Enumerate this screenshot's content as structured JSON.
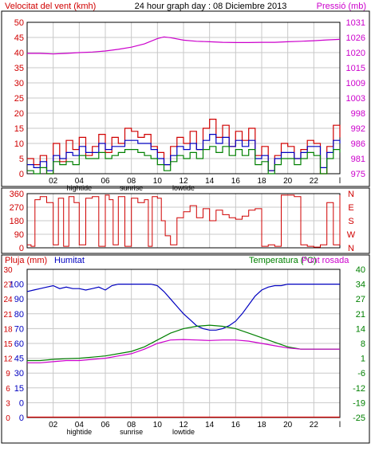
{
  "header": {
    "title": "24 hour graph day : 08 Diciembre 2013",
    "left_label": "Velocitat del vent (kmh)",
    "right_label": "Pressió (mb)"
  },
  "colors": {
    "wind": "#d00000",
    "pressure": "#cc00cc",
    "blue": "#0000c0",
    "green": "#008000",
    "grid": "#c8c8c8",
    "frame": "#000000"
  },
  "x_axis": {
    "labels": [
      "02",
      "04",
      "06",
      "08",
      "10",
      "12",
      "14",
      "16",
      "18",
      "20",
      "22",
      "l"
    ],
    "events": [
      "hightide",
      "sunrise",
      "lowtide"
    ]
  },
  "chart_data": [
    {
      "type": "line",
      "title": "24 hour graph day : 08 Diciembre 2013",
      "left_axis": {
        "label": "Velocitat del vent (kmh)",
        "ticks": [
          "0",
          "5",
          "10",
          "15",
          "20",
          "25",
          "30",
          "35",
          "40",
          "45",
          "50"
        ]
      },
      "right_axis": {
        "label": "Pressió (mb)",
        "ticks": [
          "975",
          "981",
          "986",
          "992",
          "998",
          "1003",
          "1009",
          "1015",
          "1020",
          "1026",
          "1031"
        ]
      },
      "x_ticks": [
        "02",
        "04",
        "06",
        "08",
        "10",
        "12",
        "14",
        "16",
        "18",
        "20",
        "22",
        "l"
      ],
      "series": [
        {
          "axis": "left",
          "x": [
            0,
            0.5,
            1,
            1.5,
            2,
            2.5,
            3,
            3.5,
            4,
            4.5,
            5,
            5.5,
            6,
            6.5,
            7,
            7.5,
            8,
            8.5,
            9,
            9.5,
            10,
            10.5,
            11,
            11.5,
            12,
            12.5,
            13,
            13.5,
            14,
            14.5,
            15,
            15.5,
            16,
            16.5,
            17,
            17.5,
            18,
            18.5,
            19,
            19.5,
            20,
            20.5,
            21,
            21.5,
            22,
            22.5,
            23,
            23.5,
            24
          ],
          "y": [
            5,
            3,
            6,
            0,
            10,
            4,
            11,
            8,
            12,
            6,
            9,
            13,
            7,
            12,
            10,
            15,
            14,
            12,
            13,
            9,
            7,
            3,
            9,
            12,
            10,
            14,
            8,
            15,
            18,
            12,
            16,
            9,
            14,
            11,
            15,
            6,
            9,
            1,
            6,
            10,
            9,
            5,
            8,
            11,
            10,
            0,
            9,
            16,
            12
          ]
        },
        {
          "axis": "left",
          "x": [
            0,
            0.5,
            1,
            1.5,
            2,
            2.5,
            3,
            3.5,
            4,
            4.5,
            5,
            5.5,
            6,
            6.5,
            7,
            7.5,
            8,
            8.5,
            9,
            9.5,
            10,
            10.5,
            11,
            11.5,
            12,
            12.5,
            13,
            13.5,
            14,
            14.5,
            15,
            15.5,
            16,
            16.5,
            17,
            17.5,
            18,
            18.5,
            19,
            19.5,
            20,
            20.5,
            21,
            21.5,
            22,
            22.5,
            23,
            23.5,
            24
          ],
          "y": [
            3,
            2,
            4,
            1,
            6,
            5,
            7,
            6,
            9,
            7,
            7,
            10,
            8,
            9,
            9,
            11,
            11,
            10,
            10,
            8,
            5,
            3,
            6,
            9,
            8,
            10,
            8,
            11,
            13,
            10,
            12,
            9,
            11,
            9,
            11,
            5,
            6,
            1,
            5,
            7,
            7,
            5,
            7,
            9,
            9,
            2,
            7,
            11,
            10
          ]
        },
        {
          "axis": "left",
          "x": [
            0,
            0.5,
            1,
            1.5,
            2,
            2.5,
            3,
            3.5,
            4,
            4.5,
            5,
            5.5,
            6,
            6.5,
            7,
            7.5,
            8,
            8.5,
            9,
            9.5,
            10,
            10.5,
            11,
            11.5,
            12,
            12.5,
            13,
            13.5,
            14,
            14.5,
            15,
            15.5,
            16,
            16.5,
            17,
            17.5,
            18,
            18.5,
            19,
            19.5,
            20,
            20.5,
            21,
            21.5,
            22,
            22.5,
            23,
            23.5,
            24
          ],
          "y": [
            1,
            0,
            2,
            0,
            4,
            3,
            4,
            3,
            6,
            5,
            5,
            7,
            5,
            6,
            7,
            8,
            8,
            7,
            6,
            5,
            3,
            1,
            4,
            6,
            5,
            7,
            5,
            8,
            9,
            7,
            9,
            6,
            8,
            6,
            8,
            3,
            4,
            0,
            3,
            5,
            5,
            3,
            5,
            7,
            6,
            0,
            5,
            8,
            7
          ]
        },
        {
          "axis": "right",
          "x": [
            0,
            1,
            2,
            3,
            4,
            5,
            6,
            7,
            8,
            9,
            10,
            10.5,
            11,
            12,
            13,
            14,
            15,
            16,
            17,
            18,
            19,
            20,
            21,
            22,
            23,
            24
          ],
          "y": [
            1019.5,
            1019.5,
            1019.3,
            1019.5,
            1019.8,
            1020.0,
            1020.4,
            1021.0,
            1021.8,
            1023.0,
            1025.0,
            1025.6,
            1025.3,
            1024.4,
            1024.0,
            1023.8,
            1023.6,
            1023.5,
            1023.5,
            1023.6,
            1023.6,
            1023.8,
            1024.0,
            1024.2,
            1024.5,
            1024.7
          ]
        }
      ]
    },
    {
      "type": "line",
      "title": "",
      "left_axis": {
        "label": "",
        "ticks": [
          "0",
          "90",
          "180",
          "270",
          "360"
        ]
      },
      "right_axis": {
        "label": "",
        "ticks": [
          "N",
          "W",
          "S",
          "E",
          "N"
        ]
      },
      "x_ticks": [],
      "series": [
        {
          "axis": "left",
          "x": [
            0,
            0.3,
            0.6,
            1,
            1.5,
            2,
            2.4,
            2.8,
            3.2,
            3.6,
            4,
            4.5,
            5,
            5.5,
            6,
            6.3,
            6.6,
            7,
            7.5,
            8,
            8.5,
            9,
            9.3,
            9.6,
            10,
            10.3,
            10.6,
            11,
            11.5,
            12,
            12.5,
            13,
            13.5,
            14,
            14.5,
            15,
            15.5,
            16,
            16.5,
            17,
            17.5,
            18,
            18.5,
            19,
            19.5,
            20,
            20.5,
            21,
            21.5,
            22,
            22.5,
            23,
            23.5,
            24
          ],
          "y": [
            20,
            10,
            320,
            340,
            300,
            20,
            330,
            10,
            340,
            300,
            20,
            330,
            340,
            10,
            350,
            320,
            20,
            340,
            10,
            330,
            300,
            320,
            10,
            340,
            330,
            180,
            80,
            20,
            200,
            240,
            280,
            200,
            260,
            180,
            250,
            220,
            200,
            190,
            210,
            250,
            260,
            10,
            20,
            10,
            350,
            350,
            340,
            20,
            10,
            5,
            20,
            300,
            20,
            350
          ]
        }
      ]
    },
    {
      "type": "line",
      "title": "",
      "left_axis": {
        "label": "Pluja (mm) / Humitat",
        "ticks": [
          "0",
          "0",
          "15",
          "30",
          "45",
          "60",
          "70",
          "80",
          "90",
          "100"
        ],
        "ticks_outer": [
          "0",
          "3",
          "6",
          "9",
          "12",
          "15",
          "18",
          "21",
          "24",
          "27",
          "30"
        ]
      },
      "right_axis": {
        "label": "Temperatura (°C) / Punt rosada",
        "ticks": [
          "-25",
          "-19",
          "-12",
          "-6",
          "1",
          "8",
          "14",
          "21",
          "27",
          "34",
          "40"
        ]
      },
      "x_ticks": [
        "02",
        "04",
        "06",
        "08",
        "10",
        "12",
        "14",
        "16",
        "18",
        "20",
        "22",
        "l"
      ],
      "series": [
        {
          "name": "Humitat",
          "axis": "humidity",
          "x": [
            0,
            0.5,
            1,
            1.5,
            2,
            2.5,
            3,
            3.5,
            4,
            4.5,
            5,
            5.5,
            6,
            6.5,
            7,
            7.5,
            8,
            8.5,
            9,
            9.5,
            10,
            10.5,
            11,
            11.5,
            12,
            12.5,
            13,
            13.5,
            14,
            14.5,
            15,
            15.5,
            16,
            16.5,
            17,
            17.5,
            18,
            18.5,
            19,
            19.5,
            20,
            21,
            22,
            23,
            24
          ],
          "y": [
            95,
            96,
            97,
            98,
            99,
            97,
            98,
            97,
            97,
            96,
            97,
            98,
            96,
            99,
            100,
            100,
            100,
            100,
            100,
            100,
            99,
            95,
            90,
            85,
            80,
            76,
            72,
            70,
            69,
            69,
            70,
            72,
            75,
            80,
            86,
            92,
            96,
            98,
            99,
            99,
            100,
            100,
            100,
            100,
            100
          ]
        },
        {
          "name": "Temperatura (°C)",
          "axis": "right",
          "x": [
            0,
            1,
            2,
            3,
            4,
            5,
            6,
            7,
            8,
            9,
            10,
            11,
            12,
            13,
            14,
            15,
            16,
            17,
            18,
            19,
            20,
            21,
            22,
            23,
            24
          ],
          "y": [
            0,
            0,
            0.5,
            0.8,
            1,
            1.5,
            2,
            3,
            4,
            6,
            9,
            12,
            14,
            15,
            15.5,
            15,
            14,
            12,
            10,
            8,
            6,
            5,
            5,
            5,
            5
          ]
        },
        {
          "name": "Punt rosada",
          "axis": "right",
          "x": [
            0,
            1,
            2,
            3,
            4,
            5,
            6,
            7,
            8,
            9,
            10,
            11,
            12,
            13,
            14,
            15,
            16,
            17,
            18,
            19,
            20,
            21,
            22,
            23,
            24
          ],
          "y": [
            -1,
            -1,
            -0.5,
            0,
            0,
            0.5,
            1,
            2,
            3,
            5,
            7.5,
            9,
            9.2,
            9,
            8.8,
            9,
            9,
            8.5,
            7.5,
            6.5,
            5.5,
            5,
            5,
            5,
            5
          ]
        },
        {
          "name": "Pluja (mm)",
          "axis": "rain",
          "x": [
            0,
            24
          ],
          "y": [
            0,
            0
          ]
        }
      ]
    }
  ]
}
